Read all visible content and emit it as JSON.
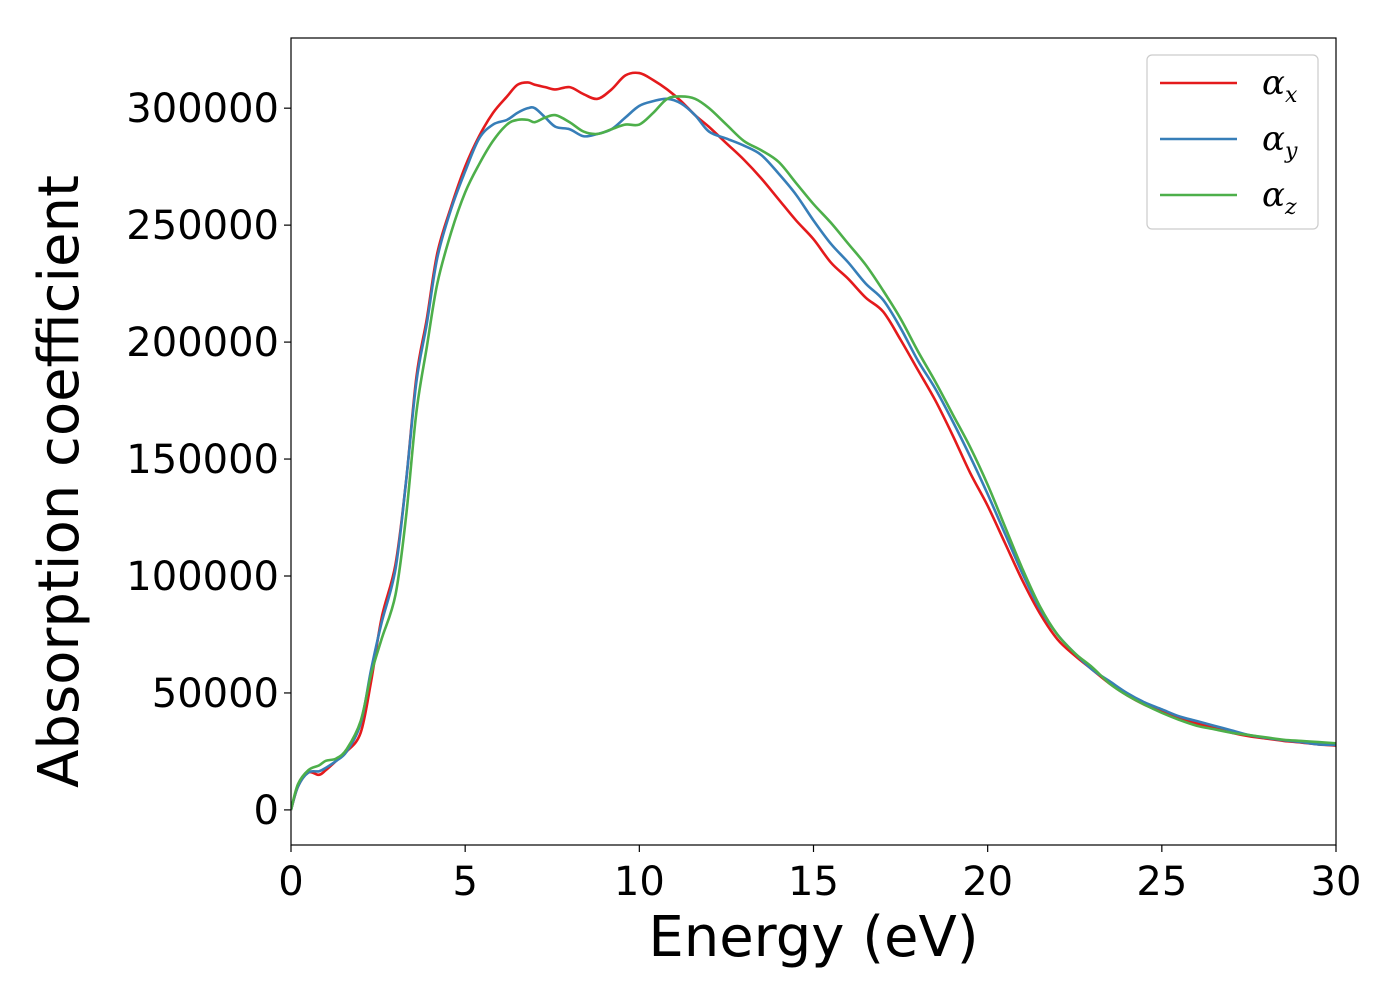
{
  "chart_data": {
    "type": "line",
    "xlabel": "Energy (eV)",
    "ylabel": "Absorption coefficient",
    "xlim": [
      0,
      30
    ],
    "ylim": [
      -15000,
      330000
    ],
    "xticks": [
      0,
      5,
      10,
      15,
      20,
      25,
      30
    ],
    "xtick_labels": [
      "0",
      "5",
      "10",
      "15",
      "20",
      "25",
      "30"
    ],
    "yticks": [
      0,
      50000,
      100000,
      150000,
      200000,
      250000,
      300000
    ],
    "ytick_labels": [
      "0",
      "50000",
      "100000",
      "150000",
      "200000",
      "250000",
      "300000"
    ],
    "grid": false,
    "legend_position": "top-right",
    "series": [
      {
        "name": "α",
        "subscript": "x",
        "color": "#e41a1c",
        "x": [
          0,
          0.2,
          0.5,
          0.8,
          1.0,
          1.3,
          1.6,
          2.0,
          2.3,
          2.6,
          3.0,
          3.3,
          3.6,
          3.9,
          4.2,
          4.6,
          5.0,
          5.4,
          5.8,
          6.2,
          6.5,
          6.8,
          7.0,
          7.3,
          7.6,
          8.0,
          8.4,
          8.8,
          9.2,
          9.6,
          10.0,
          10.4,
          10.8,
          11.2,
          11.6,
          12.0,
          12.5,
          13.0,
          13.5,
          14.0,
          14.5,
          15.0,
          15.5,
          16.0,
          16.5,
          17.0,
          17.5,
          18.0,
          18.5,
          19.0,
          19.5,
          20.0,
          20.5,
          21.0,
          21.5,
          22.0,
          22.5,
          23.0,
          23.5,
          24.0,
          24.5,
          25.0,
          25.5,
          26.0,
          26.5,
          27.0,
          27.5,
          28.0,
          28.5,
          29.0,
          29.5,
          30.0
        ],
        "y": [
          0,
          10000,
          16000,
          15000,
          17000,
          21000,
          25000,
          33000,
          55000,
          82000,
          105000,
          140000,
          185000,
          210000,
          238000,
          258000,
          275000,
          288000,
          298000,
          305000,
          310000,
          311000,
          310000,
          309000,
          308000,
          309000,
          306000,
          304000,
          308000,
          314000,
          315000,
          312000,
          308000,
          303000,
          297000,
          292000,
          285000,
          278000,
          270000,
          261000,
          252000,
          244000,
          234000,
          227000,
          219000,
          213000,
          201000,
          188000,
          175000,
          160000,
          144000,
          130000,
          114000,
          98000,
          84000,
          73000,
          66000,
          60000,
          54000,
          49000,
          45000,
          42000,
          39000,
          37000,
          35000,
          33000,
          31500,
          30500,
          29500,
          28800,
          28000,
          27500
        ]
      },
      {
        "name": "α",
        "subscript": "y",
        "color": "#377eb8",
        "x": [
          0,
          0.2,
          0.5,
          0.8,
          1.0,
          1.3,
          1.6,
          2.0,
          2.3,
          2.6,
          3.0,
          3.3,
          3.6,
          3.9,
          4.2,
          4.6,
          5.0,
          5.4,
          5.8,
          6.2,
          6.5,
          6.8,
          7.0,
          7.3,
          7.6,
          8.0,
          8.4,
          8.8,
          9.2,
          9.6,
          10.0,
          10.4,
          10.8,
          11.2,
          11.6,
          12.0,
          12.5,
          13.0,
          13.5,
          14.0,
          14.5,
          15.0,
          15.5,
          16.0,
          16.5,
          17.0,
          17.5,
          18.0,
          18.5,
          19.0,
          19.5,
          20.0,
          20.5,
          21.0,
          21.5,
          22.0,
          22.5,
          23.0,
          23.5,
          24.0,
          24.5,
          25.0,
          25.5,
          26.0,
          26.5,
          27.0,
          27.5,
          28.0,
          28.5,
          29.0,
          29.5,
          30.0
        ],
        "y": [
          0,
          10000,
          16000,
          16500,
          18000,
          21000,
          25000,
          37000,
          60000,
          80000,
          103000,
          140000,
          183000,
          208000,
          236000,
          257000,
          273000,
          287000,
          293000,
          295000,
          298000,
          300000,
          300000,
          296000,
          292000,
          291000,
          288000,
          289000,
          291000,
          296000,
          301000,
          303000,
          304000,
          302000,
          297000,
          290000,
          287000,
          284000,
          280000,
          272000,
          263000,
          252000,
          242000,
          234000,
          225000,
          218000,
          206000,
          192000,
          180000,
          166000,
          151000,
          135000,
          118000,
          101000,
          86000,
          75000,
          67000,
          60000,
          55000,
          50000,
          46000,
          43000,
          40000,
          38000,
          36000,
          34000,
          32000,
          30800,
          29800,
          29000,
          28000,
          27800
        ]
      },
      {
        "name": "α",
        "subscript": "z",
        "color": "#4daf4a",
        "x": [
          0,
          0.2,
          0.5,
          0.8,
          1.0,
          1.3,
          1.6,
          2.0,
          2.3,
          2.6,
          3.0,
          3.3,
          3.6,
          3.9,
          4.2,
          4.6,
          5.0,
          5.4,
          5.8,
          6.2,
          6.5,
          6.8,
          7.0,
          7.3,
          7.6,
          8.0,
          8.4,
          8.8,
          9.2,
          9.6,
          10.0,
          10.4,
          10.8,
          11.2,
          11.6,
          12.0,
          12.5,
          13.0,
          13.5,
          14.0,
          14.5,
          15.0,
          15.5,
          16.0,
          16.5,
          17.0,
          17.5,
          18.0,
          18.5,
          19.0,
          19.5,
          20.0,
          20.5,
          21.0,
          21.5,
          22.0,
          22.5,
          23.0,
          23.5,
          24.0,
          24.5,
          25.0,
          25.5,
          26.0,
          26.5,
          27.0,
          27.5,
          28.0,
          28.5,
          29.0,
          29.5,
          30.0
        ],
        "y": [
          0,
          11000,
          17000,
          19000,
          21000,
          22000,
          26000,
          38000,
          58000,
          73000,
          92000,
          125000,
          170000,
          198000,
          225000,
          247000,
          264000,
          276000,
          286000,
          293000,
          295000,
          295000,
          294000,
          296000,
          297000,
          294000,
          290000,
          289000,
          291000,
          293000,
          293000,
          298000,
          304000,
          305000,
          304000,
          300000,
          293000,
          286000,
          282000,
          277000,
          268000,
          259000,
          251000,
          242000,
          233000,
          222000,
          210000,
          196000,
          183000,
          169000,
          155000,
          139000,
          121000,
          103000,
          87000,
          75000,
          67000,
          61000,
          54000,
          49000,
          45000,
          41500,
          38500,
          36000,
          34500,
          33000,
          32000,
          31000,
          30000,
          29500,
          29000,
          28500
        ]
      }
    ]
  }
}
